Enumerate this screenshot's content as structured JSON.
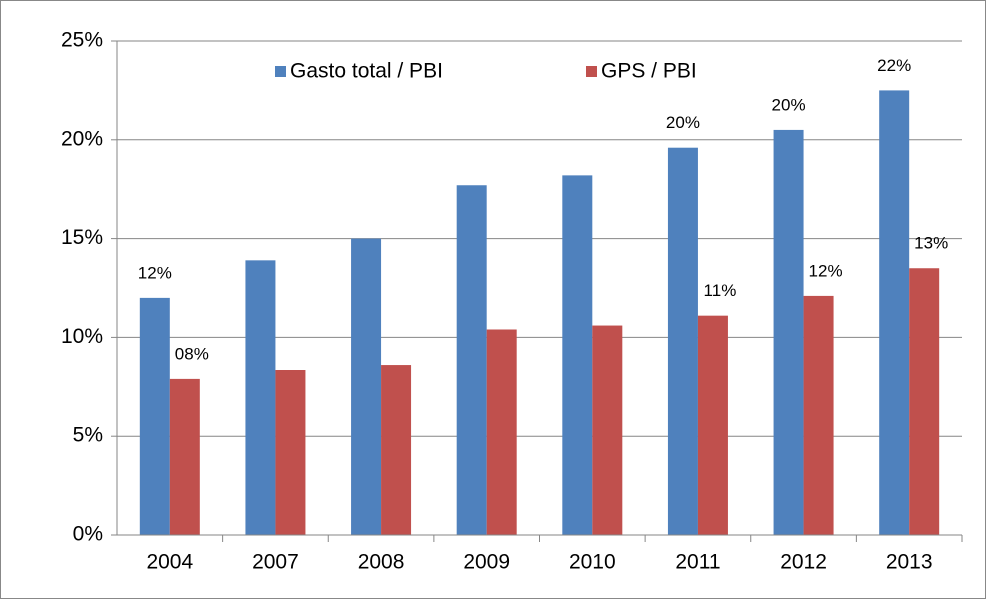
{
  "chart_data": {
    "type": "bar",
    "categories": [
      "2004",
      "2007",
      "2008",
      "2009",
      "2010",
      "2011",
      "2012",
      "2013"
    ],
    "series": [
      {
        "name": "Gasto total / PBI",
        "color": "#4f81bd",
        "values": [
          12.0,
          13.9,
          15.0,
          17.7,
          18.2,
          19.6,
          20.5,
          22.5
        ],
        "value_labels": [
          "12%",
          null,
          null,
          null,
          null,
          "20%",
          "20%",
          "22%"
        ]
      },
      {
        "name": "GPS / PBI",
        "color": "#c0504d",
        "values": [
          7.9,
          8.35,
          8.6,
          10.4,
          10.6,
          11.1,
          12.1,
          13.5
        ],
        "value_labels": [
          "08%",
          null,
          null,
          null,
          null,
          "11%",
          "12%",
          "13%"
        ]
      }
    ],
    "ylim": [
      0,
      25
    ],
    "yticks": [
      {
        "value": 0,
        "label": "0%"
      },
      {
        "value": 5,
        "label": "5%"
      },
      {
        "value": 10,
        "label": "10%"
      },
      {
        "value": 15,
        "label": "15%"
      },
      {
        "value": 20,
        "label": "20%"
      },
      {
        "value": 25,
        "label": "25%"
      }
    ],
    "grid": true,
    "legend": "top"
  }
}
